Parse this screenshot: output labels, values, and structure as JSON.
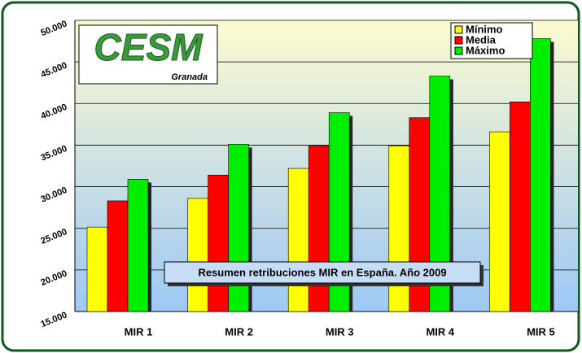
{
  "chart_data": {
    "type": "bar",
    "title": "Resumen retribuciones MIR en España. Año 2009",
    "logo": {
      "text": "CESM",
      "subtext": "Granada"
    },
    "categories": [
      "MIR 1",
      "MIR 2",
      "MIR 3",
      "MIR 4",
      "MIR 5"
    ],
    "series": [
      {
        "name": "Mínimo",
        "color": "#ffff00",
        "values": [
          25150,
          28600,
          32200,
          34900,
          36600
        ]
      },
      {
        "name": "Media",
        "color": "#ff0000",
        "values": [
          28300,
          31400,
          34900,
          38300,
          40200
        ]
      },
      {
        "name": "Máximo",
        "color": "#00ee00",
        "values": [
          30900,
          35100,
          38900,
          43300,
          47800
        ]
      }
    ],
    "ylim": [
      15000,
      50000
    ],
    "yticks": [
      {
        "value": 15000,
        "label": "15.000"
      },
      {
        "value": 20000,
        "label": "20.000"
      },
      {
        "value": 25000,
        "label": "25.000"
      },
      {
        "value": 30000,
        "label": "30.000"
      },
      {
        "value": 35000,
        "label": "35.000"
      },
      {
        "value": 40000,
        "label": "40.000"
      },
      {
        "value": 45000,
        "label": "45.000"
      },
      {
        "value": 50000,
        "label": "50.000"
      }
    ],
    "grid": true,
    "legend": "top-right"
  }
}
